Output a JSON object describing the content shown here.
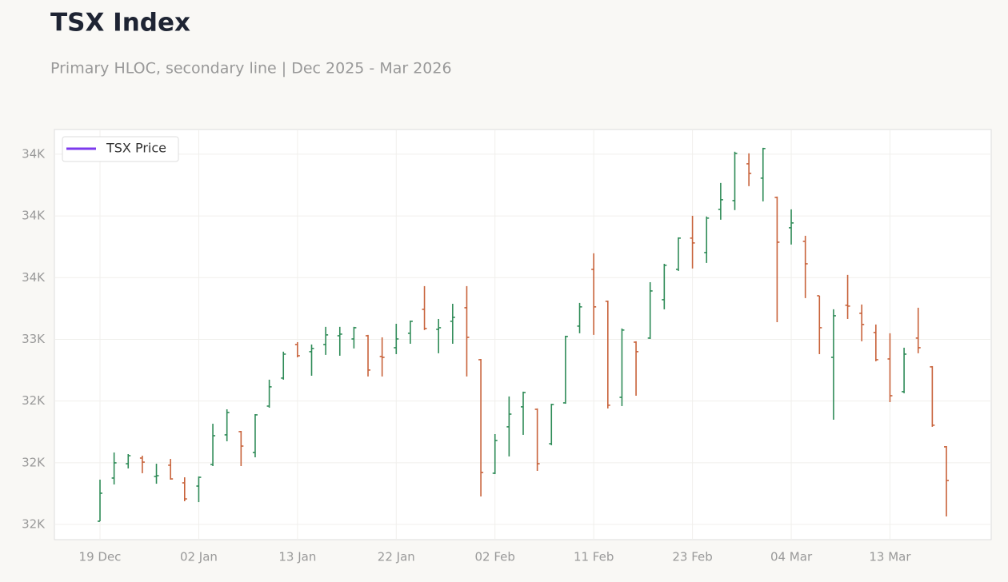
{
  "chart_data": {
    "type": "ohlc",
    "title": "TSX Index",
    "subtitle": "Primary HLOC, secondary line | Dec 2025 - Mar 2026",
    "categories": [
      "19 Dec",
      null,
      null,
      null,
      null,
      null,
      null,
      "02 Jan",
      null,
      null,
      null,
      null,
      null,
      null,
      "13 Jan",
      null,
      null,
      null,
      null,
      null,
      null,
      "22 Jan",
      null,
      null,
      null,
      null,
      null,
      null,
      "02 Feb",
      null,
      null,
      null,
      null,
      null,
      null,
      "11 Feb",
      null,
      null,
      null,
      null,
      null,
      null,
      "23 Feb",
      null,
      null,
      null,
      null,
      null,
      null,
      "04 Mar",
      null,
      null,
      null,
      null,
      null,
      null,
      "13 Mar",
      null,
      null,
      null,
      null
    ],
    "open": [
      31526,
      31876,
      31992,
      32038,
      31889,
      31980,
      31837,
      31811,
      31986,
      32226,
      32252,
      32083,
      32459,
      32686,
      32958,
      32900,
      32958,
      33029,
      33003,
      33029,
      32861,
      32932,
      33049,
      33243,
      33081,
      33146,
      33256,
      32835,
      31915,
      32291,
      32453,
      32433,
      32154,
      32485,
      33107,
      33567,
      33308,
      32530,
      32977,
      33010,
      33321,
      33567,
      33820,
      33703,
      34053,
      34124,
      34422,
      34306,
      34150,
      33904,
      33794,
      33353,
      32854,
      33276,
      33211,
      33055,
      32841,
      32576,
      33010,
      32777,
      32129
    ],
    "high": [
      31863,
      32083,
      32070,
      32057,
      31992,
      32031,
      31882,
      31889,
      32316,
      32433,
      32258,
      32394,
      32673,
      32900,
      32977,
      32958,
      33101,
      33101,
      33101,
      33036,
      33016,
      33126,
      33152,
      33431,
      33165,
      33288,
      33431,
      32841,
      32232,
      32537,
      32576,
      32440,
      32478,
      33029,
      33295,
      33697,
      33314,
      33088,
      32984,
      33463,
      33612,
      33826,
      34001,
      33995,
      34267,
      34520,
      34507,
      34552,
      34157,
      34053,
      33839,
      33353,
      33243,
      33522,
      33282,
      33120,
      33049,
      32932,
      33256,
      32783,
      32135
    ],
    "low": [
      31526,
      31824,
      31954,
      31915,
      31830,
      31863,
      31688,
      31681,
      31973,
      32174,
      31973,
      32044,
      32446,
      32673,
      32854,
      32705,
      32874,
      32867,
      32926,
      32699,
      32699,
      32880,
      32964,
      33075,
      32887,
      32964,
      32699,
      31727,
      31908,
      32051,
      32226,
      31934,
      32142,
      32478,
      33049,
      33036,
      32440,
      32459,
      32543,
      33003,
      33243,
      33554,
      33574,
      33619,
      33969,
      34047,
      34241,
      34118,
      33139,
      33768,
      33334,
      32880,
      32349,
      33165,
      32984,
      32822,
      32491,
      32563,
      32887,
      32291,
      31565
    ],
    "close": [
      31753,
      31999,
      32057,
      32005,
      31895,
      31869,
      31707,
      31882,
      32219,
      32407,
      32135,
      32388,
      32615,
      32880,
      32867,
      32926,
      33036,
      33042,
      33094,
      32751,
      32854,
      33003,
      33146,
      33088,
      33094,
      33178,
      33016,
      31921,
      32180,
      32394,
      32569,
      31992,
      32472,
      33023,
      33263,
      33263,
      32466,
      33075,
      32900,
      33392,
      33600,
      33820,
      33781,
      33982,
      34131,
      34507,
      34345,
      34546,
      33787,
      33943,
      33612,
      33094,
      33191,
      33269,
      33120,
      32835,
      32543,
      32880,
      32932,
      32304,
      31856
    ],
    "up_color": "#2e8b57",
    "down_color": "#c8623a",
    "line_legend": {
      "name": "TSX Price",
      "color": "#7c3aed"
    },
    "legend_position": "upper left",
    "ylim": [
      31377,
      34700
    ],
    "yticks": [
      {
        "value": 31500,
        "label": "32K"
      },
      {
        "value": 32000,
        "label": "32K"
      },
      {
        "value": 32500,
        "label": "32K"
      },
      {
        "value": 33000,
        "label": "33K"
      },
      {
        "value": 33500,
        "label": "34K"
      },
      {
        "value": 34000,
        "label": "34K"
      },
      {
        "value": 34500,
        "label": "34K"
      }
    ],
    "grid": true
  }
}
